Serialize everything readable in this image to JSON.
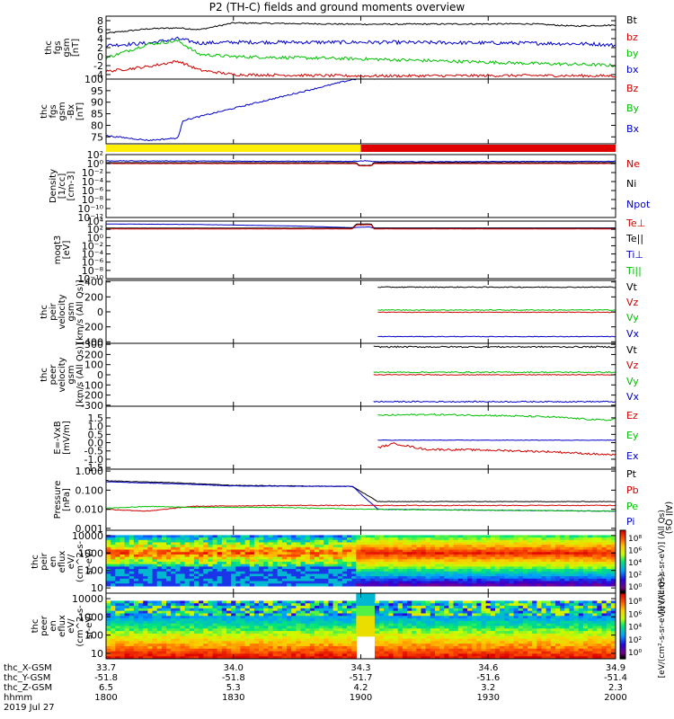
{
  "title": "P2 (TH-C) fields and ground moments overview",
  "colors": {
    "black": "#000000",
    "red": "#d00000",
    "green": "#00c000",
    "blue": "#0000c8",
    "yellow": "#ffee00",
    "barred": "#e00000"
  },
  "time_axis": {
    "rows": [
      {
        "label": "thc_X-GSM",
        "values": [
          "33.7",
          "34.0",
          "34.3",
          "34.6",
          "34.9"
        ]
      },
      {
        "label": "thc_Y-GSM",
        "values": [
          "-51.8",
          "-51.8",
          "-51.7",
          "-51.6",
          "-51.4"
        ]
      },
      {
        "label": "thc_Z-GSM",
        "values": [
          "6.5",
          "5.3",
          "4.2",
          "3.2",
          "2.3"
        ]
      },
      {
        "label": "hhmm",
        "values": [
          "1800",
          "1830",
          "1900",
          "1930",
          "2000"
        ]
      }
    ],
    "date": "2019 Jul 27",
    "minutes_range": [
      0,
      120
    ]
  },
  "chart_data": [
    {
      "type": "line",
      "ylabel": [
        "thc",
        "fgs",
        "gsm",
        "[nT]"
      ],
      "ylim": [
        -5,
        9
      ],
      "yticks": [
        {
          "v": 8,
          "t": "8"
        },
        {
          "v": 6,
          "t": "6"
        },
        {
          "v": 4,
          "t": "4"
        },
        {
          "v": 2,
          "t": "2"
        },
        {
          "v": 0,
          "t": "0"
        },
        {
          "v": -2,
          "t": "-2"
        },
        {
          "v": -4,
          "t": "-4"
        }
      ],
      "legend": [
        {
          "name": "Bt",
          "color": "black"
        },
        {
          "name": "bz",
          "color": "red"
        },
        {
          "name": "by",
          "color": "green"
        },
        {
          "name": "bx",
          "color": "blue"
        }
      ],
      "series": [
        {
          "color": "black",
          "noise": 0.15,
          "x": [
            0,
            10,
            17,
            22,
            30,
            60,
            100,
            110,
            120
          ],
          "y": [
            5.2,
            6.2,
            6.4,
            6.0,
            7.5,
            7.2,
            7.3,
            6.8,
            7.0
          ]
        },
        {
          "color": "blue",
          "noise": 0.4,
          "x": [
            0,
            10,
            17,
            22,
            30,
            60,
            100,
            115,
            120
          ],
          "y": [
            2.5,
            3.0,
            4.0,
            3.0,
            3.2,
            3.2,
            3.0,
            2.8,
            2.5
          ]
        },
        {
          "color": "green",
          "noise": 0.35,
          "x": [
            0,
            10,
            17,
            22,
            30,
            60,
            100,
            115,
            120
          ],
          "y": [
            -0.3,
            2.8,
            3.5,
            0.5,
            0.0,
            -0.5,
            -1.5,
            -1.8,
            -2.0
          ]
        },
        {
          "color": "red",
          "noise": 0.3,
          "x": [
            0,
            10,
            17,
            22,
            30,
            60,
            100,
            120
          ],
          "y": [
            -3.3,
            -2.2,
            -1.0,
            -3.0,
            -4.0,
            -4.3,
            -4.2,
            -4.3
          ]
        }
      ]
    },
    {
      "type": "line",
      "ylabel": [
        "thc",
        "fgs",
        "gsm",
        "-Bx",
        "[nT]"
      ],
      "ylim": [
        72,
        100
      ],
      "yticks": [
        {
          "v": 100,
          "t": "100"
        },
        {
          "v": 95,
          "t": "95"
        },
        {
          "v": 90,
          "t": "90"
        },
        {
          "v": 85,
          "t": "85"
        },
        {
          "v": 80,
          "t": "80"
        },
        {
          "v": 75,
          "t": "75"
        }
      ],
      "legend": [
        {
          "name": "Bz",
          "color": "red"
        },
        {
          "name": "By",
          "color": "green"
        },
        {
          "name": "Bx",
          "color": "blue"
        }
      ],
      "series": [
        {
          "color": "blue",
          "noise": 0.3,
          "x": [
            0,
            5,
            10,
            17,
            18,
            58,
            60,
            120
          ],
          "y": [
            75.5,
            74.5,
            73.5,
            74.5,
            82.0,
            99.8,
            100.2,
            100.5
          ]
        }
      ]
    },
    {
      "type": "bar",
      "segments": [
        {
          "x0": 0,
          "x1": 60,
          "color": "yellow"
        },
        {
          "x0": 60,
          "x1": 120,
          "color": "barred"
        }
      ]
    },
    {
      "type": "line",
      "scale": "log",
      "ylabel": [
        "Density",
        "[1/cc]",
        "[cm-3]"
      ],
      "ylim": [
        -12,
        2
      ],
      "yticks": [
        {
          "v": 2,
          "t": "10²"
        },
        {
          "v": 0,
          "t": "10⁰"
        },
        {
          "v": -2,
          "t": "10⁻²"
        },
        {
          "v": -4,
          "t": "10⁻⁴"
        },
        {
          "v": -6,
          "t": "10⁻⁶"
        },
        {
          "v": -8,
          "t": "10⁻⁸"
        },
        {
          "v": -10,
          "t": "10⁻¹⁰"
        },
        {
          "v": -12,
          "t": "10⁻¹²"
        }
      ],
      "legend": [
        {
          "name": "Ne",
          "color": "red"
        },
        {
          "name": "Ni",
          "color": "black"
        },
        {
          "name": "Npot",
          "color": "blue"
        }
      ],
      "series": [
        {
          "color": "blue",
          "noise": 0.06,
          "x": [
            0,
            58,
            60,
            62,
            63,
            120
          ],
          "y": [
            0.6,
            0.5,
            0.6,
            0.6,
            0.4,
            0.5
          ]
        },
        {
          "color": "black",
          "noise": 0.03,
          "x": [
            0,
            59,
            59.5,
            62.5,
            63,
            120
          ],
          "y": [
            0.2,
            0.2,
            -0.4,
            -0.4,
            0.2,
            0.2
          ]
        },
        {
          "color": "red",
          "noise": 0.03,
          "x": [
            0,
            59,
            59.5,
            62.5,
            63,
            120
          ],
          "y": [
            0.0,
            0.0,
            -0.5,
            -0.5,
            0.0,
            0.0
          ]
        }
      ]
    },
    {
      "type": "line",
      "scale": "log",
      "ylabel": [
        "moqt3",
        "[eV]"
      ],
      "ylim": [
        -10,
        4
      ],
      "yticks": [
        {
          "v": 4,
          "t": "10⁴"
        },
        {
          "v": 2,
          "t": "10²"
        },
        {
          "v": 0,
          "t": "10⁰"
        },
        {
          "v": -2,
          "t": "10⁻²"
        },
        {
          "v": -4,
          "t": "10⁻⁴"
        },
        {
          "v": -6,
          "t": "10⁻⁶"
        },
        {
          "v": -8,
          "t": "10⁻⁸"
        },
        {
          "v": -10,
          "t": "10⁻¹⁰"
        }
      ],
      "legend": [
        {
          "name": "Te⊥",
          "color": "red"
        },
        {
          "name": "Te||",
          "color": "black"
        },
        {
          "name": "Ti⊥",
          "color": "blue"
        },
        {
          "name": "Ti||",
          "color": "green"
        }
      ],
      "series": [
        {
          "color": "blue",
          "noise": 0.02,
          "x": [
            0,
            20,
            45,
            58,
            62,
            63,
            120
          ],
          "y": [
            3.3,
            3.2,
            2.8,
            2.4,
            2.6,
            2.3,
            2.3
          ]
        },
        {
          "color": "black",
          "noise": 0.02,
          "x": [
            0,
            58,
            59,
            62.5,
            63,
            120
          ],
          "y": [
            2.3,
            2.3,
            3.3,
            3.3,
            2.3,
            2.3
          ]
        },
        {
          "color": "red",
          "noise": 0.02,
          "x": [
            0,
            58,
            59,
            62.5,
            63,
            120
          ],
          "y": [
            2.1,
            2.1,
            3.1,
            3.1,
            2.1,
            2.1
          ]
        }
      ]
    },
    {
      "type": "line",
      "ylabel": [
        "thc",
        "peir",
        "velocity",
        "gsm",
        "[km/s (All Qs)]"
      ],
      "ylim": [
        -420,
        420
      ],
      "yticks": [
        {
          "v": 400,
          "t": "400"
        },
        {
          "v": 200,
          "t": "200"
        },
        {
          "v": 0,
          "t": "0"
        },
        {
          "v": -200,
          "t": "-200"
        },
        {
          "v": -400,
          "t": "-400"
        }
      ],
      "legend": [
        {
          "name": "Vt",
          "color": "black"
        },
        {
          "name": "Vz",
          "color": "red"
        },
        {
          "name": "Vy",
          "color": "green"
        },
        {
          "name": "Vx",
          "color": "blue"
        }
      ],
      "series": [
        {
          "color": "black",
          "noise": 6,
          "x": [
            64,
            120
          ],
          "y": [
            330,
            330
          ]
        },
        {
          "color": "green",
          "noise": 6,
          "x": [
            64,
            120
          ],
          "y": [
            25,
            25
          ]
        },
        {
          "color": "red",
          "noise": 4,
          "x": [
            64,
            120
          ],
          "y": [
            -5,
            -5
          ]
        },
        {
          "color": "blue",
          "noise": 4,
          "x": [
            64,
            120
          ],
          "y": [
            -330,
            -330
          ]
        }
      ]
    },
    {
      "type": "line",
      "ylabel": [
        "thc",
        "peer",
        "velocity",
        "gsm",
        "[km/s (All Qs)]"
      ],
      "ylim": [
        -310,
        310
      ],
      "yticks": [
        {
          "v": 300,
          "t": "300"
        },
        {
          "v": 200,
          "t": "200"
        },
        {
          "v": 100,
          "t": "100"
        },
        {
          "v": 0,
          "t": "0"
        },
        {
          "v": -100,
          "t": "-100"
        },
        {
          "v": -200,
          "t": "-200"
        },
        {
          "v": -300,
          "t": "-300"
        }
      ],
      "legend": [
        {
          "name": "Vt",
          "color": "black"
        },
        {
          "name": "Vz",
          "color": "red"
        },
        {
          "name": "Vy",
          "color": "green"
        },
        {
          "name": "Vx",
          "color": "blue"
        }
      ],
      "series": [
        {
          "color": "black",
          "noise": 7,
          "x": [
            63,
            120
          ],
          "y": [
            275,
            275
          ]
        },
        {
          "color": "green",
          "noise": 6,
          "x": [
            63,
            120
          ],
          "y": [
            25,
            25
          ]
        },
        {
          "color": "red",
          "noise": 4,
          "x": [
            63,
            120
          ],
          "y": [
            0,
            0
          ]
        },
        {
          "color": "blue",
          "noise": 6,
          "x": [
            63,
            120
          ],
          "y": [
            -265,
            -265
          ]
        }
      ]
    },
    {
      "type": "line",
      "ylabel": [
        "E=-VxB",
        "[mV/m]"
      ],
      "ylim": [
        -1.6,
        2.2
      ],
      "yticks": [
        {
          "v": 1.5,
          "t": "1.5"
        },
        {
          "v": 1.0,
          "t": "1.0"
        },
        {
          "v": 0.5,
          "t": "0.5"
        },
        {
          "v": 0.0,
          "t": "0.0"
        },
        {
          "v": -0.5,
          "t": "-0.5"
        },
        {
          "v": -1.0,
          "t": "-1.0"
        },
        {
          "v": -1.5,
          "t": "-1.5"
        }
      ],
      "legend": [
        {
          "name": "Ez",
          "color": "red"
        },
        {
          "name": "Ey",
          "color": "green"
        },
        {
          "name": "Ex",
          "color": "blue"
        }
      ],
      "series": [
        {
          "color": "green",
          "noise": 0.05,
          "x": [
            64,
            75,
            90,
            105,
            118,
            120
          ],
          "y": [
            1.65,
            1.7,
            1.65,
            1.55,
            1.35,
            1.45
          ]
        },
        {
          "color": "blue",
          "noise": 0.015,
          "x": [
            64,
            120
          ],
          "y": [
            0.15,
            0.15
          ]
        },
        {
          "color": "red",
          "noise": 0.06,
          "x": [
            64,
            68,
            75,
            90,
            105,
            120
          ],
          "y": [
            -0.3,
            -0.05,
            -0.4,
            -0.45,
            -0.55,
            -0.75
          ]
        }
      ]
    },
    {
      "type": "line",
      "scale": "log",
      "ylabel": [
        "Pressure",
        "[nPa]"
      ],
      "ylim": [
        -3.1,
        0.1
      ],
      "yticks": [
        {
          "v": 0,
          "t": "1.000"
        },
        {
          "v": -1,
          "t": "0.100"
        },
        {
          "v": -2,
          "t": "0.010"
        },
        {
          "v": -3,
          "t": "0.001"
        }
      ],
      "legend": [
        {
          "name": "Pt",
          "color": "black"
        },
        {
          "name": "Pb",
          "color": "red"
        },
        {
          "name": "Pe",
          "color": "green"
        },
        {
          "name": "Pi",
          "color": "blue"
        }
      ],
      "side_label": "(All Qs)",
      "series": [
        {
          "color": "black",
          "noise": 0.015,
          "x": [
            0,
            5,
            15,
            30,
            55,
            58,
            64,
            120
          ],
          "y": [
            -0.5,
            -0.55,
            -0.6,
            -0.75,
            -0.8,
            -0.8,
            -1.6,
            -1.6
          ]
        },
        {
          "color": "blue",
          "noise": 0.015,
          "x": [
            0,
            5,
            15,
            30,
            55,
            58,
            64,
            120
          ],
          "y": [
            -0.55,
            -0.6,
            -0.65,
            -0.78,
            -0.8,
            -0.8,
            -2.0,
            -2.1
          ]
        },
        {
          "color": "red",
          "noise": 0.02,
          "x": [
            0,
            10,
            20,
            40,
            60,
            120
          ],
          "y": [
            -2.0,
            -2.1,
            -1.85,
            -1.8,
            -1.8,
            -1.8
          ]
        },
        {
          "color": "green",
          "noise": 0.02,
          "x": [
            0,
            10,
            20,
            40,
            60,
            120
          ],
          "y": [
            -1.95,
            -1.85,
            -1.9,
            -1.9,
            -2.0,
            -2.1
          ]
        }
      ]
    },
    {
      "type": "heatmap",
      "ylabel": [
        "thc",
        "peir",
        "en",
        "eflux",
        "eV/",
        "(cm^2-s-",
        "sr-eV)"
      ],
      "scale": "log",
      "ylim": [
        0.7,
        4.3
      ],
      "yticks": [
        {
          "v": 4,
          "t": "10000"
        },
        {
          "v": 3,
          "t": "1000"
        },
        {
          "v": 2,
          "t": "100"
        },
        {
          "v": 1,
          "t": "10"
        }
      ],
      "colorbar": {
        "ticks": [
          "10⁸",
          "10⁶",
          "10⁴",
          "10²",
          "10⁰"
        ],
        "label": "[eV/(cm²-s-sr-eV)] (All Qs)"
      }
    },
    {
      "type": "heatmap",
      "ylabel": [
        "thc",
        "peer",
        "en",
        "eflux",
        "eV/",
        "(cm^2-s-",
        "sr-eV)"
      ],
      "scale": "log",
      "ylim": [
        0.7,
        4.3
      ],
      "yticks": [
        {
          "v": 4,
          "t": "10000"
        },
        {
          "v": 3,
          "t": "1000"
        },
        {
          "v": 2,
          "t": "100"
        },
        {
          "v": 1,
          "t": "10"
        }
      ],
      "colorbar": {
        "ticks": [
          "10⁸",
          "10⁶",
          "10⁴",
          "10²",
          "10⁰"
        ],
        "label": "[eV/(cm²-s-sr-eV)] (All Qs)"
      }
    }
  ]
}
